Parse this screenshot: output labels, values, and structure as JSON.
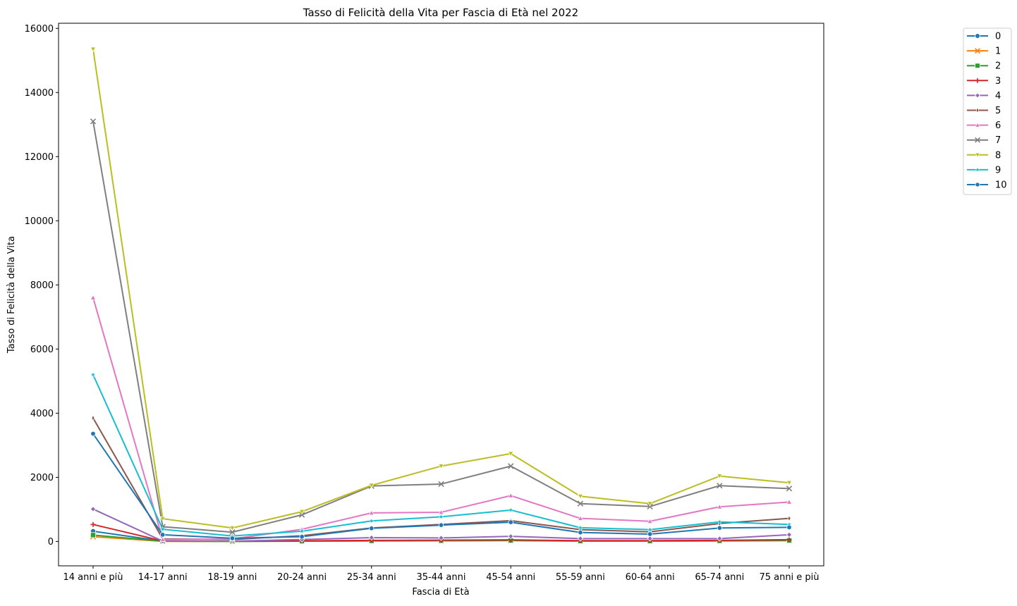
{
  "chart_data": {
    "type": "line",
    "title": "Tasso di Felicità della Vita per Fascia di Età nel 2022",
    "xlabel": "Fascia di Età",
    "ylabel": "Tasso di Felicità della Vita",
    "categories": [
      "14 anni e più",
      "14-17 anni",
      "18-19 anni",
      "20-24 anni",
      "25-34 anni",
      "35-44 anni",
      "45-54 anni",
      "55-59 anni",
      "60-64 anni",
      "65-74 anni",
      "75 anni e più"
    ],
    "ylim": [
      -760,
      16160
    ],
    "yticks": [
      0,
      2000,
      4000,
      6000,
      8000,
      10000,
      12000,
      14000,
      16000
    ],
    "grid": false,
    "legend_position": "right, outside the plot area",
    "series": [
      {
        "name": "0",
        "color": "#1f77b4",
        "marker": "circle",
        "values": [
          320,
          10,
          5,
          15,
          30,
          35,
          40,
          20,
          20,
          30,
          45
        ]
      },
      {
        "name": "1",
        "color": "#ff7f0e",
        "marker": "x",
        "values": [
          150,
          5,
          3,
          8,
          15,
          20,
          25,
          10,
          10,
          15,
          25
        ]
      },
      {
        "name": "2",
        "color": "#2ca02c",
        "marker": "square",
        "values": [
          200,
          8,
          5,
          10,
          20,
          25,
          30,
          15,
          15,
          20,
          30
        ]
      },
      {
        "name": "3",
        "color": "#d62728",
        "marker": "plus",
        "values": [
          530,
          15,
          8,
          20,
          35,
          40,
          50,
          25,
          25,
          35,
          55
        ]
      },
      {
        "name": "4",
        "color": "#9467bd",
        "marker": "diamond",
        "values": [
          1010,
          10,
          10,
          60,
          120,
          110,
          160,
          90,
          90,
          90,
          210
        ]
      },
      {
        "name": "5",
        "color": "#8c564b",
        "marker": "thin_diamond",
        "values": [
          3850,
          80,
          60,
          180,
          420,
          530,
          650,
          370,
          300,
          560,
          720
        ]
      },
      {
        "name": "6",
        "color": "#e377c2",
        "marker": "triangle_up",
        "values": [
          7600,
          60,
          80,
          380,
          890,
          910,
          1430,
          720,
          630,
          1080,
          1230
        ]
      },
      {
        "name": "7",
        "color": "#7f7f7f",
        "marker": "x",
        "values": [
          13100,
          460,
          290,
          830,
          1730,
          1790,
          2350,
          1180,
          1090,
          1740,
          1650
        ]
      },
      {
        "name": "8",
        "color": "#bcbd22",
        "marker": "triangle_down",
        "values": [
          15350,
          710,
          420,
          930,
          1750,
          2350,
          2740,
          1410,
          1180,
          2040,
          1830
        ]
      },
      {
        "name": "9",
        "color": "#17becf",
        "marker": "star",
        "values": [
          5200,
          380,
          170,
          320,
          640,
          770,
          980,
          430,
          370,
          610,
          530
        ]
      },
      {
        "name": "10",
        "color": "#1f77b4",
        "marker": "hexagon",
        "values": [
          3360,
          210,
          100,
          150,
          410,
          510,
          600,
          280,
          230,
          420,
          440
        ]
      }
    ]
  }
}
